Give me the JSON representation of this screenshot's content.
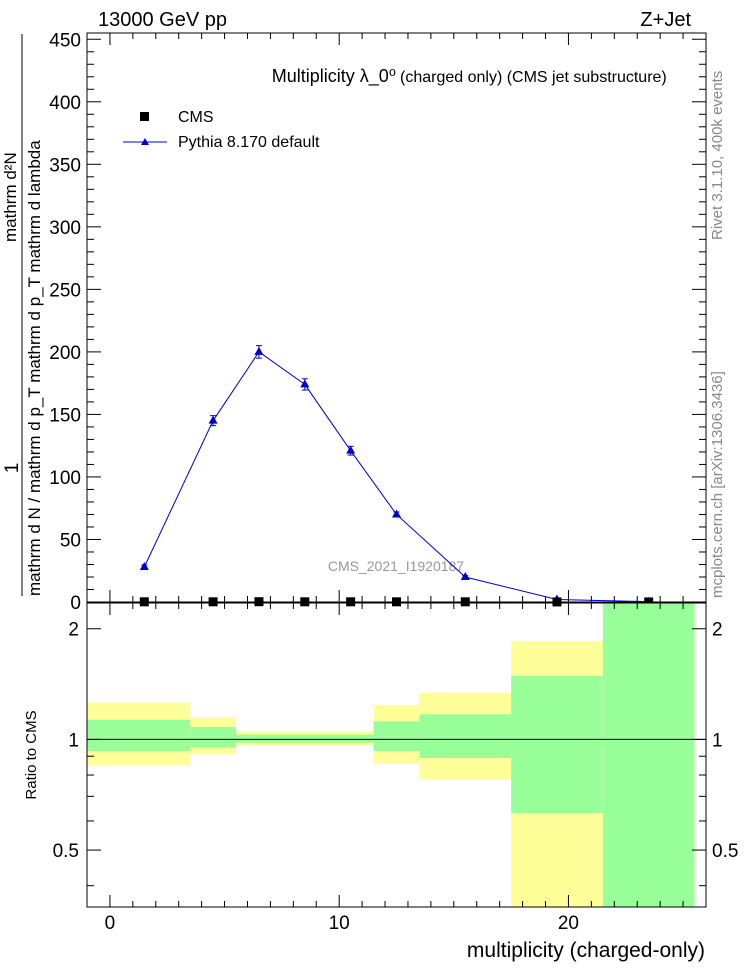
{
  "header": {
    "left": "13000 GeV pp",
    "right": "Z+Jet"
  },
  "side_labels": {
    "rivet": "Rivet 3.1.10,  400k events",
    "mcplots": "mcplots.cern.ch [arXiv:1306.3436]"
  },
  "colors": {
    "mc": "#0000cc",
    "band_outer": "#ffff99",
    "band_inner": "#99ff99",
    "data": "#000000",
    "watermark": "#999999"
  },
  "chart_data": [
    {
      "id": "main",
      "type": "line",
      "title_main": "Multiplicity  λ_0⁰",
      "title_sub": "(charged only) (CMS jet substructure)",
      "ylabel": "1 / mathrm d N / mathrm d p_T mathrm d^2N / mathrm d p_T mathrm d lambda",
      "ylabel_numerator": "mathrm d²N",
      "ylabel_denominator": "mathrm d N / mathrm d p_T mathrm d p_T mathrm d lambda",
      "ylabel_prefix": "1",
      "watermark": "CMS_2021_I1920187",
      "xlim": [
        -1,
        26
      ],
      "ylim": [
        0,
        455
      ],
      "yticks": [
        0,
        50,
        100,
        150,
        200,
        250,
        300,
        350,
        400,
        450
      ],
      "legend": [
        {
          "name": "CMS",
          "marker": "square"
        },
        {
          "name": "Pythia 8.170 default",
          "marker": "triangle"
        }
      ],
      "series": [
        {
          "name": "CMS",
          "x": [
            1.5,
            4.5,
            6.5,
            8.5,
            10.5,
            12.5,
            15.5,
            19.5,
            23.5
          ],
          "y": [
            0.15,
            0.15,
            0.25,
            0.15,
            0.15,
            0.15,
            0.15,
            0.05,
            0.05
          ]
        },
        {
          "name": "Pythia 8.170 default",
          "x": [
            1.5,
            4.5,
            6.5,
            8.5,
            10.5,
            12.5,
            15.5,
            19.5,
            23.5
          ],
          "y": [
            28,
            145,
            200,
            174,
            121,
            70,
            20,
            2,
            0.3
          ],
          "yerr": [
            1.5,
            4,
            5,
            4.5,
            3.5,
            2,
            1,
            0.3,
            0.1
          ]
        }
      ]
    },
    {
      "id": "ratio",
      "type": "area",
      "ylabel": "Ratio to CMS",
      "xlabel": "multiplicity (charged-only)",
      "xlim": [
        -1,
        26
      ],
      "ylim": [
        0.35,
        2.35
      ],
      "xticks": [
        0,
        10,
        20
      ],
      "yticks": [
        0.5,
        1,
        2
      ],
      "bins": [
        {
          "lo": -1,
          "hi": 3.5,
          "outer": [
            0.85,
            1.26
          ],
          "inner": [
            0.93,
            1.13
          ]
        },
        {
          "lo": 3.5,
          "hi": 5.5,
          "outer": [
            0.91,
            1.15
          ],
          "inner": [
            0.95,
            1.08
          ]
        },
        {
          "lo": 5.5,
          "hi": 11.5,
          "outer": [
            0.965,
            1.05
          ],
          "inner": [
            0.98,
            1.03
          ]
        },
        {
          "lo": 11.5,
          "hi": 13.5,
          "outer": [
            0.86,
            1.24
          ],
          "inner": [
            0.93,
            1.12
          ]
        },
        {
          "lo": 13.5,
          "hi": 17.5,
          "outer": [
            0.78,
            1.34
          ],
          "inner": [
            0.89,
            1.17
          ]
        },
        {
          "lo": 17.5,
          "hi": 21.5,
          "outer": [
            0.35,
            1.85
          ],
          "inner": [
            0.63,
            1.49
          ]
        },
        {
          "lo": 21.5,
          "hi": 25.5,
          "outer": [
            0.35,
            2.35
          ],
          "inner": [
            0.35,
            2.35
          ]
        }
      ]
    }
  ]
}
